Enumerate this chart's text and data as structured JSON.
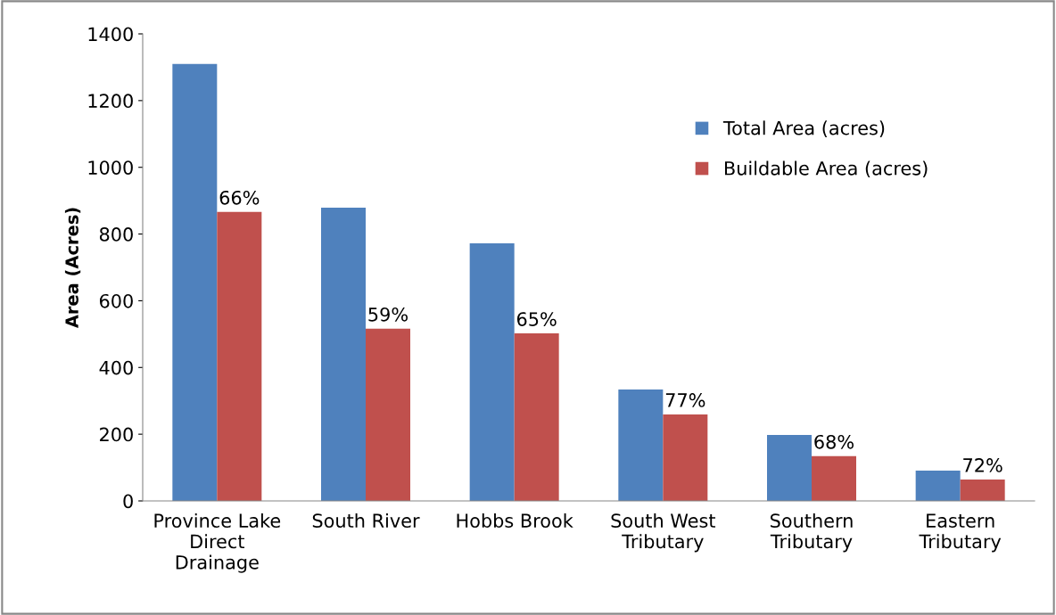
{
  "chart_data": {
    "type": "bar",
    "ylabel": "Area (Acres)",
    "categories": [
      "Province Lake\nDirect\nDrainage",
      "South River",
      "Hobbs Brook",
      "South West\nTributary",
      "Southern\nTributary",
      "Eastern\nTributary"
    ],
    "series": [
      {
        "name": "Total Area (acres)",
        "color": "#4f81bd",
        "values": [
          1310,
          879,
          772,
          334,
          198,
          91
        ]
      },
      {
        "name": "Buildable Area (acres)",
        "color": "#c0504d",
        "values": [
          866,
          516,
          502,
          259,
          134,
          64
        ]
      }
    ],
    "annotations": [
      {
        "text": "66%",
        "x": "Province Lake\nDirect\nDrainage",
        "y": 866
      },
      {
        "text": "59%",
        "x": "South River",
        "y": 516
      },
      {
        "text": "65%",
        "x": "Hobbs Brook",
        "y": 502
      },
      {
        "text": "77%",
        "x": "South West\nTributary",
        "y": 259
      },
      {
        "text": "68%",
        "x": "Southern\nTributary",
        "y": 134
      },
      {
        "text": "72%",
        "x": "Eastern\nTributary",
        "y": 64
      }
    ],
    "ylim": [
      0,
      1400
    ],
    "yticks": [
      0,
      200,
      400,
      600,
      800,
      1000,
      1200,
      1400
    ],
    "grid": false,
    "legend": "top right"
  }
}
